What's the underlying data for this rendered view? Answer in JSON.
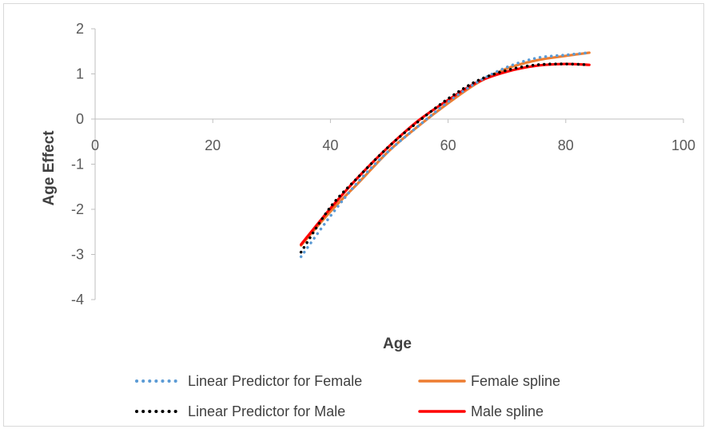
{
  "chart_data": {
    "type": "line",
    "title": "",
    "xlabel": "Age",
    "ylabel": "Age Effect",
    "xlim": [
      0,
      100
    ],
    "ylim": [
      -4,
      2
    ],
    "x_ticks": [
      0,
      20,
      40,
      60,
      80,
      100
    ],
    "y_ticks": [
      2,
      1,
      0,
      -1,
      -2,
      -3,
      -4
    ],
    "grid": false,
    "legend_position": "bottom",
    "series": [
      {
        "name": "Linear Predictor for Female",
        "style": "dotted",
        "color": "#5b9bd5",
        "x": [
          35,
          40,
          45,
          50,
          55,
          60,
          65,
          70,
          75,
          80,
          84
        ],
        "y": [
          -3.05,
          -2.15,
          -1.35,
          -0.7,
          -0.15,
          0.38,
          0.82,
          1.15,
          1.35,
          1.42,
          1.47
        ]
      },
      {
        "name": "Female spline",
        "style": "solid",
        "color": "#ed7d31",
        "x": [
          35,
          40,
          45,
          50,
          55,
          60,
          65,
          70,
          75,
          80,
          84
        ],
        "y": [
          -2.8,
          -2.05,
          -1.38,
          -0.7,
          -0.15,
          0.35,
          0.8,
          1.12,
          1.3,
          1.4,
          1.47
        ]
      },
      {
        "name": "Linear Predictor for Male",
        "style": "dotted",
        "color": "#000000",
        "x": [
          35,
          40,
          45,
          50,
          55,
          60,
          65,
          70,
          75,
          80,
          84
        ],
        "y": [
          -2.95,
          -1.95,
          -1.25,
          -0.6,
          -0.05,
          0.45,
          0.85,
          1.08,
          1.2,
          1.22,
          1.2
        ]
      },
      {
        "name": "Male spline",
        "style": "solid",
        "color": "#ff0000",
        "x": [
          35,
          40,
          45,
          50,
          55,
          60,
          65,
          70,
          75,
          80,
          84
        ],
        "y": [
          -2.78,
          -1.98,
          -1.25,
          -0.6,
          -0.03,
          0.42,
          0.82,
          1.05,
          1.18,
          1.22,
          1.2
        ]
      }
    ]
  }
}
